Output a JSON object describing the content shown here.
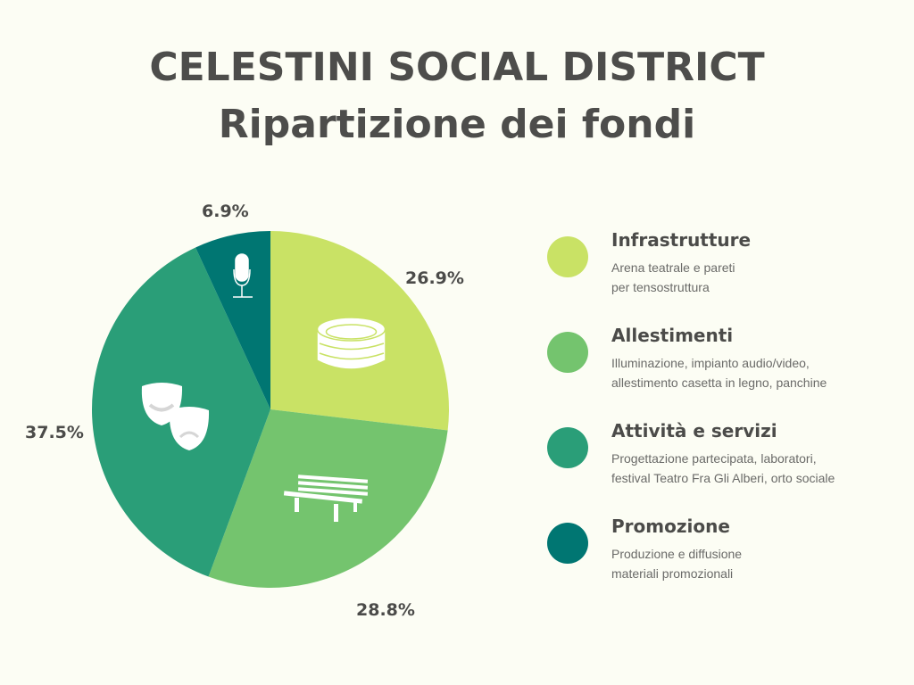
{
  "title_line1": "CELESTINI SOCIAL DISTRICT",
  "title_line2": "Ripartizione dei fondi",
  "chart_data": {
    "type": "pie",
    "start": "top",
    "direction": "clockwise",
    "slices": [
      {
        "name": "Infrastrutture",
        "value": 26.9,
        "label": "26.9%",
        "color": "#c9e265",
        "icon": "colosseum-arena-icon",
        "description": [
          "Arena teatrale e pareti",
          "per tensostruttura"
        ]
      },
      {
        "name": "Allestimenti",
        "value": 28.8,
        "label": "28.8%",
        "color": "#74c46e",
        "icon": "park-bench-icon",
        "description": [
          "Illuminazione, impianto audio/video,",
          "allestimento casetta in legno, panchine"
        ]
      },
      {
        "name": "Attività e servizi",
        "value": 37.5,
        "label": "37.5%",
        "color": "#2a9e78",
        "icon": "theater-masks-icon",
        "description": [
          "Progettazione partecipata, laboratori,",
          "festival Teatro Fra Gli Alberi, orto sociale"
        ]
      },
      {
        "name": "Promozione",
        "value": 6.9,
        "label": "6.9%",
        "color": "#007672",
        "icon": "microphone-icon",
        "description": [
          "Produzione e diffusione",
          "materiali promozionali"
        ]
      }
    ],
    "legend": "right"
  }
}
